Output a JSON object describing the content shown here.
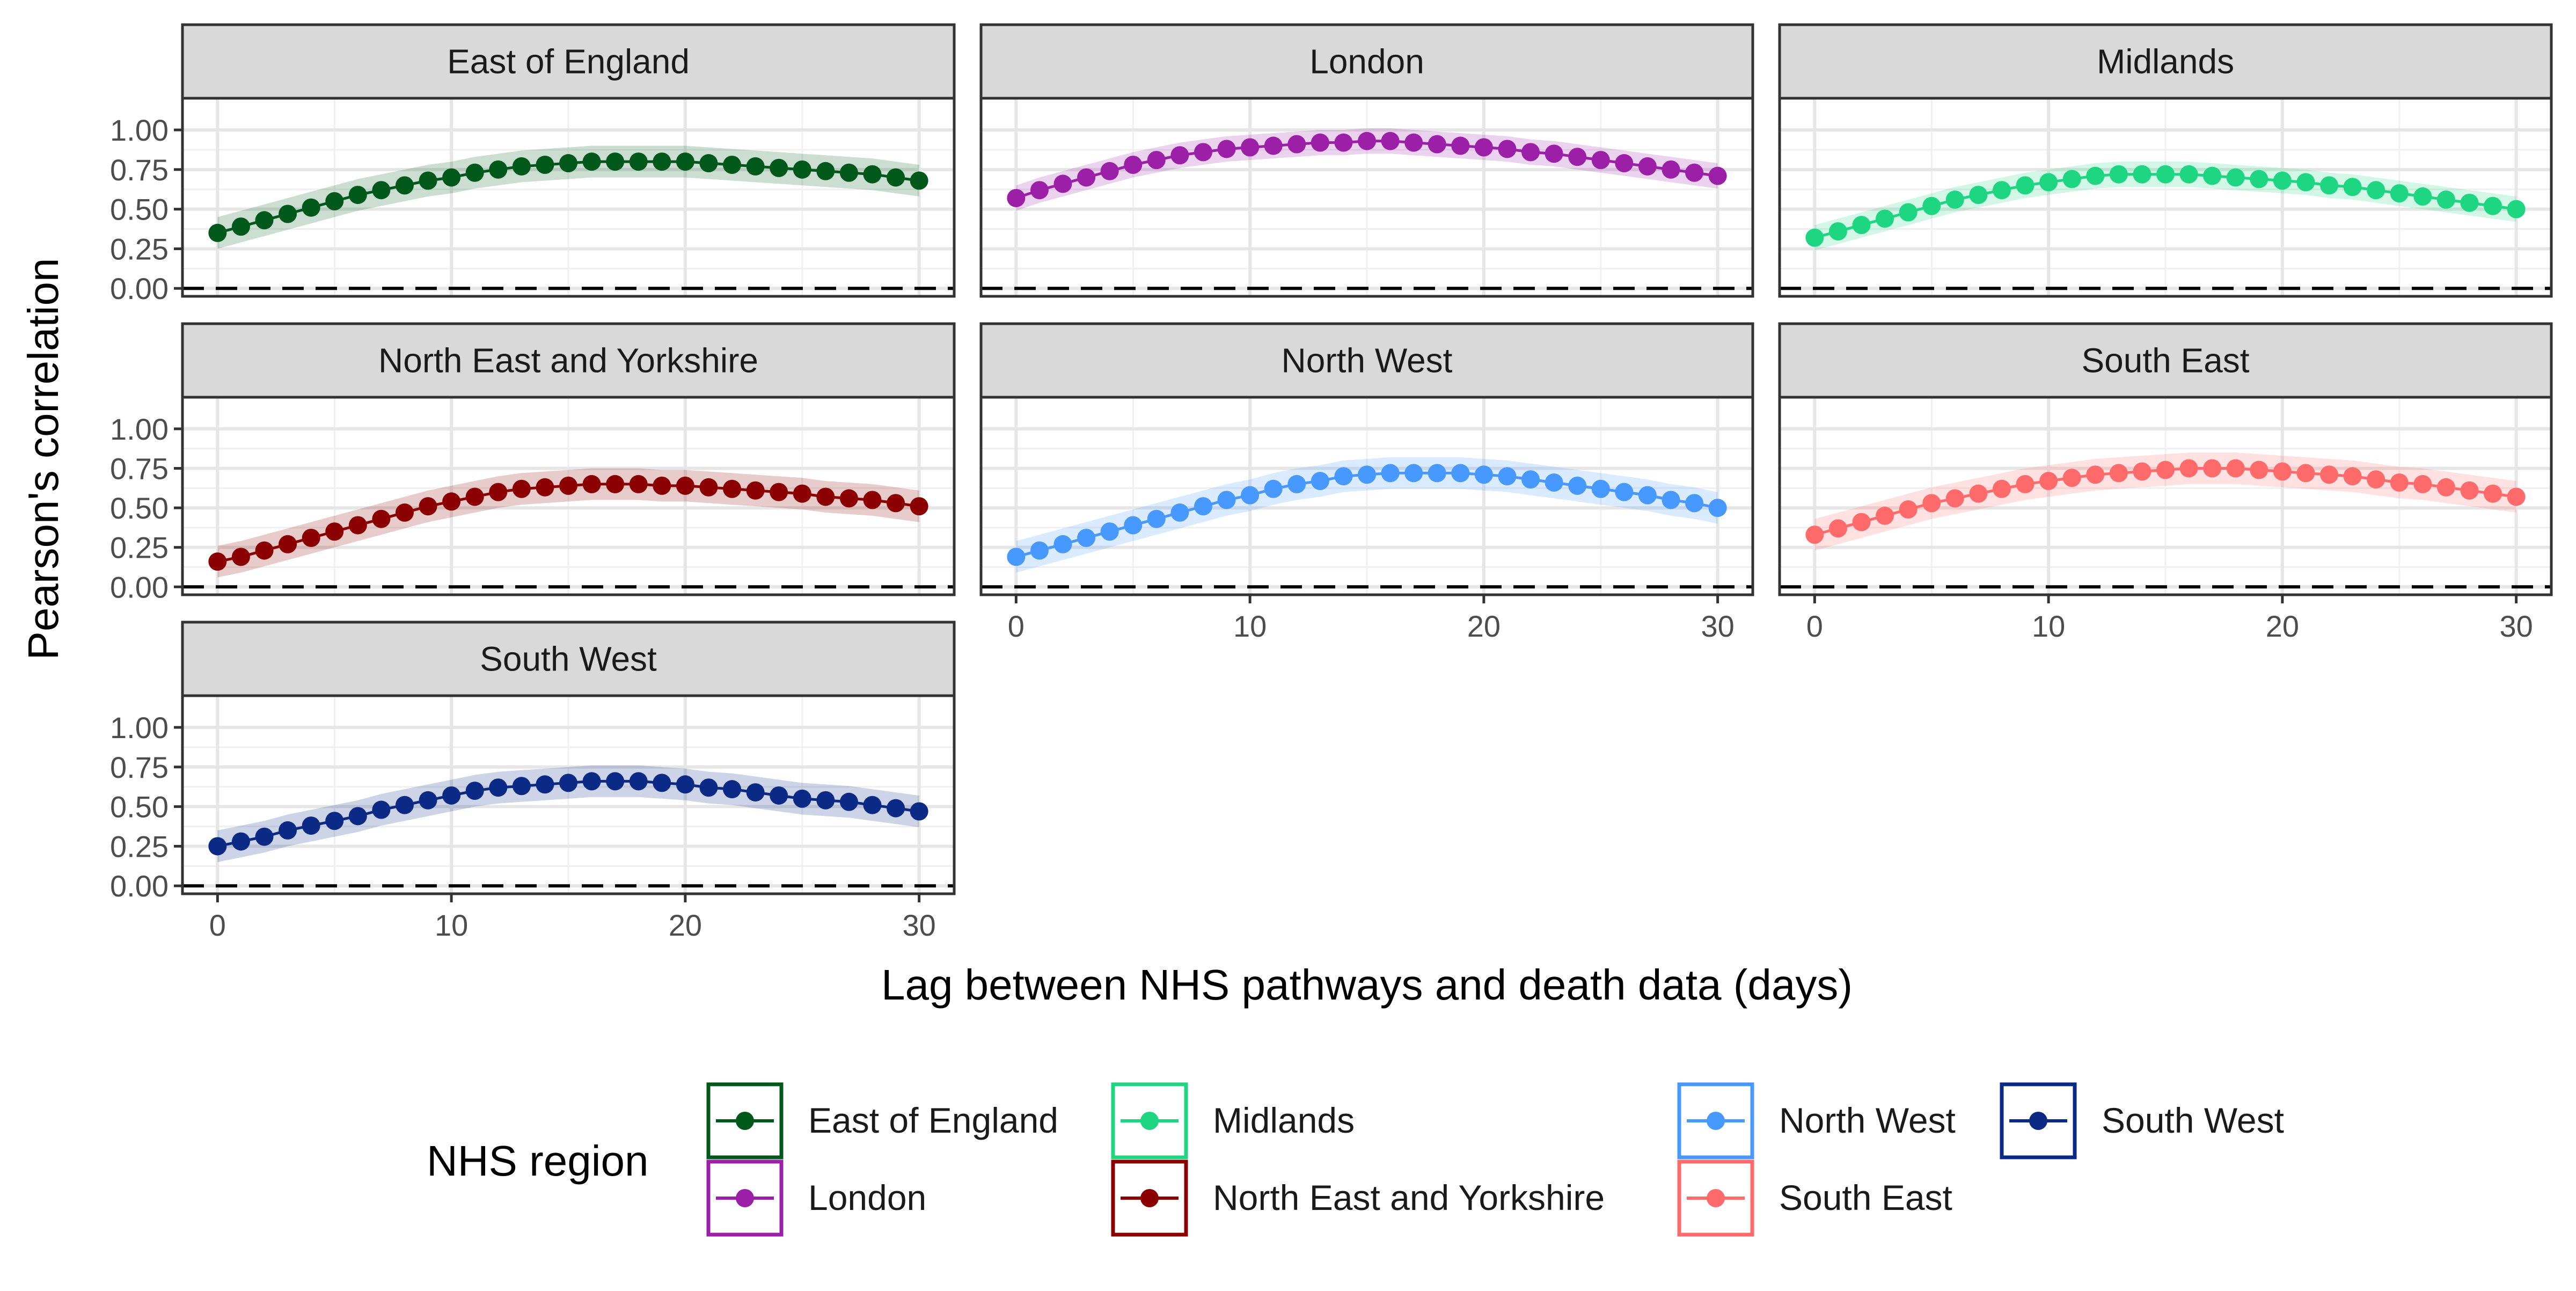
{
  "chart_data": {
    "type": "scatter",
    "title": "",
    "xlabel": "Lag between NHS pathways and death data (days)",
    "ylabel": "Pearson's correlation",
    "xlim": [
      -1.5,
      31.5
    ],
    "ylim": [
      -0.05,
      1.2
    ],
    "x_ticks": [
      0,
      10,
      20,
      30
    ],
    "y_ticks": [
      0.0,
      0.25,
      0.5,
      0.75,
      1.0
    ],
    "y_tick_labels": [
      "0.00",
      "0.25",
      "0.50",
      "0.75",
      "1.00"
    ],
    "reference_line": {
      "y": 0,
      "style": "dashed"
    },
    "grid": true,
    "legend": {
      "title": "NHS region",
      "position": "bottom",
      "entries": [
        "East of England",
        "London",
        "Midlands",
        "North East and Yorkshire",
        "North West",
        "South East",
        "South West"
      ]
    },
    "x": [
      0,
      1,
      2,
      3,
      4,
      5,
      6,
      7,
      8,
      9,
      10,
      11,
      12,
      13,
      14,
      15,
      16,
      17,
      18,
      19,
      20,
      21,
      22,
      23,
      24,
      25,
      26,
      27,
      28,
      29,
      30
    ],
    "series": [
      {
        "name": "East of England",
        "color": "#00591b",
        "values": [
          0.35,
          0.39,
          0.43,
          0.47,
          0.51,
          0.55,
          0.59,
          0.62,
          0.65,
          0.68,
          0.7,
          0.73,
          0.75,
          0.77,
          0.78,
          0.79,
          0.8,
          0.8,
          0.8,
          0.8,
          0.8,
          0.79,
          0.78,
          0.77,
          0.76,
          0.75,
          0.74,
          0.73,
          0.72,
          0.7,
          0.68
        ],
        "band": 0.1
      },
      {
        "name": "London",
        "color": "#9c1fa8",
        "values": [
          0.57,
          0.62,
          0.66,
          0.7,
          0.74,
          0.78,
          0.81,
          0.84,
          0.86,
          0.88,
          0.89,
          0.9,
          0.91,
          0.92,
          0.92,
          0.93,
          0.93,
          0.92,
          0.91,
          0.9,
          0.89,
          0.88,
          0.86,
          0.85,
          0.83,
          0.81,
          0.79,
          0.77,
          0.75,
          0.73,
          0.71
        ],
        "band": 0.08
      },
      {
        "name": "Midlands",
        "color": "#1ed682",
        "values": [
          0.32,
          0.36,
          0.4,
          0.44,
          0.48,
          0.52,
          0.56,
          0.59,
          0.62,
          0.65,
          0.67,
          0.69,
          0.71,
          0.72,
          0.72,
          0.72,
          0.72,
          0.71,
          0.7,
          0.69,
          0.68,
          0.67,
          0.65,
          0.64,
          0.62,
          0.6,
          0.58,
          0.56,
          0.54,
          0.52,
          0.5
        ],
        "band": 0.08
      },
      {
        "name": "North East and Yorkshire",
        "color": "#8b0000",
        "values": [
          0.16,
          0.19,
          0.23,
          0.27,
          0.31,
          0.35,
          0.39,
          0.43,
          0.47,
          0.51,
          0.54,
          0.57,
          0.6,
          0.62,
          0.63,
          0.64,
          0.65,
          0.65,
          0.65,
          0.64,
          0.64,
          0.63,
          0.62,
          0.61,
          0.6,
          0.59,
          0.57,
          0.56,
          0.55,
          0.53,
          0.51
        ],
        "band": 0.1
      },
      {
        "name": "North West",
        "color": "#4798ff",
        "values": [
          0.19,
          0.23,
          0.27,
          0.31,
          0.35,
          0.39,
          0.43,
          0.47,
          0.51,
          0.55,
          0.58,
          0.62,
          0.65,
          0.67,
          0.7,
          0.71,
          0.72,
          0.72,
          0.72,
          0.72,
          0.71,
          0.7,
          0.68,
          0.66,
          0.64,
          0.62,
          0.6,
          0.58,
          0.55,
          0.53,
          0.5
        ],
        "band": 0.1
      },
      {
        "name": "South East",
        "color": "#ff6b6b",
        "values": [
          0.33,
          0.37,
          0.41,
          0.45,
          0.49,
          0.53,
          0.56,
          0.59,
          0.62,
          0.65,
          0.67,
          0.69,
          0.71,
          0.72,
          0.73,
          0.74,
          0.75,
          0.75,
          0.75,
          0.74,
          0.73,
          0.72,
          0.71,
          0.7,
          0.68,
          0.66,
          0.65,
          0.63,
          0.61,
          0.59,
          0.57
        ],
        "band": 0.1
      },
      {
        "name": "South West",
        "color": "#0a2a85",
        "values": [
          0.25,
          0.28,
          0.31,
          0.35,
          0.38,
          0.41,
          0.44,
          0.48,
          0.51,
          0.54,
          0.57,
          0.6,
          0.62,
          0.63,
          0.64,
          0.65,
          0.66,
          0.66,
          0.66,
          0.65,
          0.64,
          0.62,
          0.61,
          0.59,
          0.57,
          0.55,
          0.54,
          0.53,
          0.51,
          0.49,
          0.47
        ],
        "band": 0.1
      }
    ]
  }
}
